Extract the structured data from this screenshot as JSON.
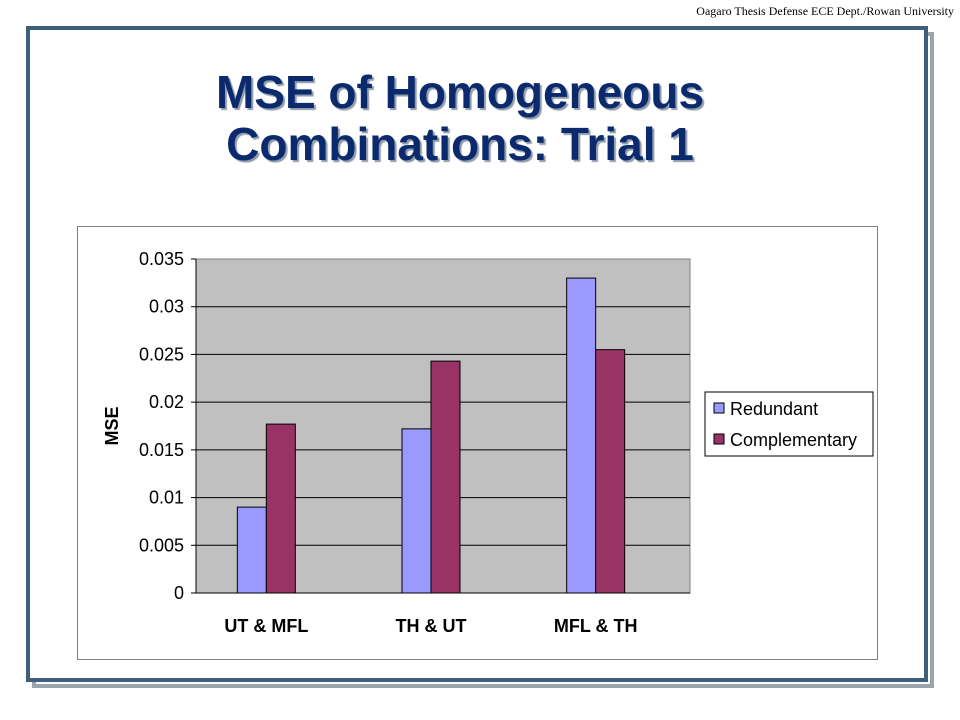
{
  "header": {
    "text": "Oagaro Thesis Defense ECE Dept./Rowan University"
  },
  "slide": {
    "title_line1": "MSE of Homogeneous",
    "title_line2": "Combinations: Trial 1"
  },
  "chart_data": {
    "type": "bar",
    "title": "",
    "xlabel": "",
    "ylabel": "MSE",
    "categories": [
      "UT & MFL",
      "TH & UT",
      "MFL & TH"
    ],
    "series": [
      {
        "name": "Redundant",
        "values": [
          0.009,
          0.0172,
          0.033
        ],
        "color": "#9999ff"
      },
      {
        "name": "Complementary",
        "values": [
          0.0177,
          0.0243,
          0.0255
        ],
        "color": "#993366"
      }
    ],
    "ylim": [
      0,
      0.035
    ],
    "yticks": [
      "0",
      "0.005",
      "0.01",
      "0.015",
      "0.02",
      "0.025",
      "0.03",
      "0.035"
    ],
    "grid": true,
    "plot_background": "#c0c0c0",
    "legend_position": "right"
  }
}
